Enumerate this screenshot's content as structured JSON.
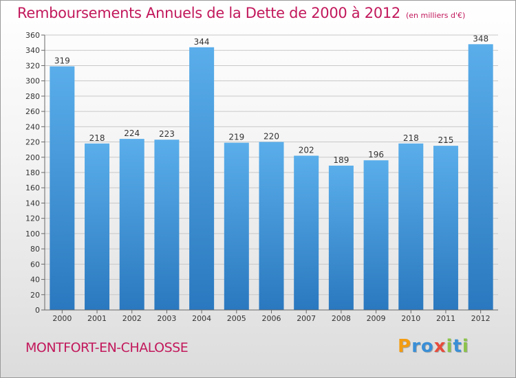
{
  "chart_data": {
    "type": "bar",
    "title": "Remboursements Annuels de la Dette de 2000 à 2012",
    "subtitle": "(en milliers d'€)",
    "categories": [
      "2000",
      "2001",
      "2002",
      "2003",
      "2004",
      "2005",
      "2006",
      "2007",
      "2008",
      "2009",
      "2010",
      "2011",
      "2012"
    ],
    "values": [
      319,
      218,
      224,
      223,
      344,
      219,
      220,
      202,
      189,
      196,
      218,
      215,
      348
    ],
    "ylim": [
      0,
      360
    ],
    "yticks": [
      0,
      20,
      40,
      60,
      80,
      100,
      120,
      140,
      160,
      180,
      200,
      220,
      240,
      260,
      280,
      300,
      320,
      340,
      360
    ],
    "grid": true,
    "xlabel": "",
    "ylabel": "",
    "bar_color": "#3f95d8"
  },
  "footer": {
    "city": "MONTFORT-EN-CHALOSSE",
    "logo_letters": [
      "P",
      "r",
      "o",
      "x",
      "i",
      "t",
      "i"
    ],
    "logo_colors": [
      "#f39c12",
      "#3b8fd6",
      "#3b8fd6",
      "#e74c3c",
      "#8bc34a",
      "#3b8fd6",
      "#8bc34a"
    ]
  },
  "colors": {
    "title": "#c2185b",
    "grid": "#c8c8c8"
  }
}
